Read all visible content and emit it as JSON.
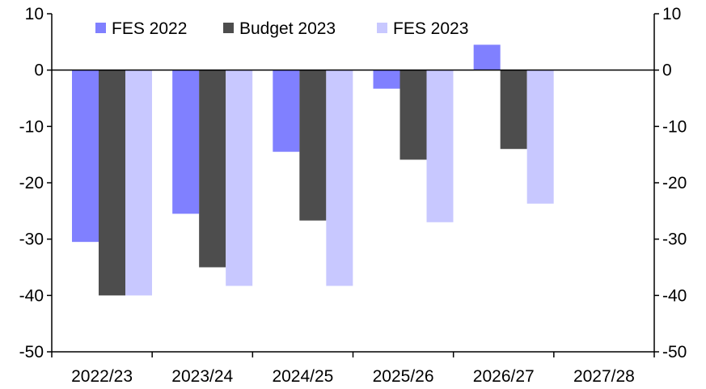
{
  "chart_data": {
    "type": "bar",
    "categories": [
      "2022/23",
      "2023/24",
      "2024/25",
      "2025/26",
      "2026/27",
      "2027/28"
    ],
    "series": [
      {
        "name": "FES 2022",
        "color": "#8080ff",
        "values": [
          -30.5,
          -25.5,
          -14.5,
          -3.3,
          4.5,
          null
        ]
      },
      {
        "name": "Budget 2023",
        "color": "#4d4d4d",
        "values": [
          -40.0,
          -35.0,
          -26.7,
          -15.9,
          -14.0,
          null
        ]
      },
      {
        "name": "FES 2023",
        "color": "#c8c8ff",
        "values": [
          -40.0,
          -38.3,
          -38.3,
          -27.0,
          -23.7,
          null
        ]
      }
    ],
    "y_ticks": [
      "10",
      "0",
      "-10",
      "-20",
      "-30",
      "-40",
      "-50"
    ],
    "ylim": [
      -50,
      10
    ],
    "legend_position": "top",
    "grid": false,
    "title": "",
    "xlabel": "",
    "ylabel": ""
  }
}
